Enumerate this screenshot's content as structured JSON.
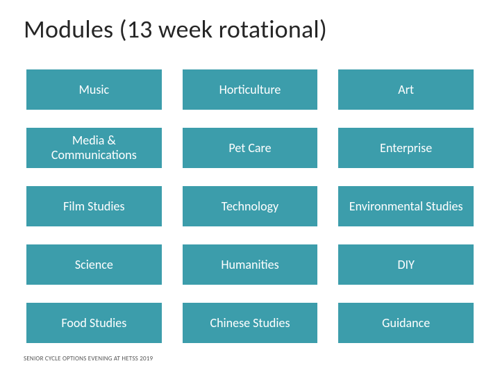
{
  "title": "Modules (13 week rotational)",
  "tile_bg": "#3c9dab",
  "text_color": "#ffffff",
  "tiles": [
    "Music",
    "Horticulture",
    "Art",
    "Media & Communications",
    "Pet Care",
    "Enterprise",
    "Film Studies",
    "Technology",
    "Environmental Studies",
    "Science",
    "Humanities",
    "DIY",
    "Food Studies",
    "Chinese Studies",
    "Guidance"
  ],
  "footer": "SENIOR CYCLE OPTIONS EVENING AT HETSS 2019"
}
